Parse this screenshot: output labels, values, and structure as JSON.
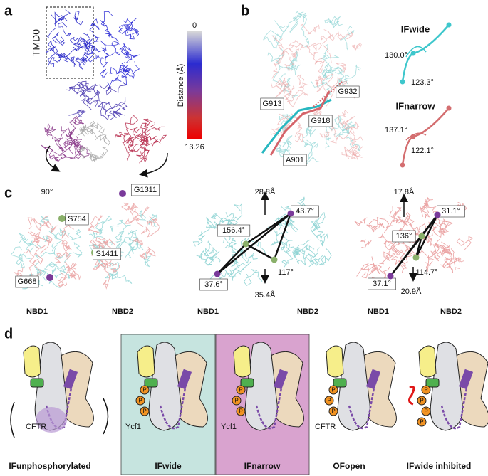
{
  "panels": {
    "a": {
      "label": "a",
      "box_label": "TMD0",
      "colorbar": {
        "title": "Distance (Å)",
        "min": "0",
        "max": "13.26"
      }
    },
    "b": {
      "label": "b",
      "residues": [
        "G913",
        "G932",
        "G918",
        "A901"
      ],
      "insets": [
        {
          "title": "IFwide",
          "angles": [
            "130.0°",
            "123.3°"
          ]
        },
        {
          "title": "IFnarrow",
          "angles": [
            "137.1°",
            "122.1°"
          ]
        }
      ]
    },
    "c": {
      "label": "c",
      "rotation": "90°",
      "left": {
        "residues": [
          "G1311",
          "S754",
          "S1411",
          "G668"
        ],
        "domains": [
          "NBD1",
          "NBD2"
        ]
      },
      "middle": {
        "angles": [
          "156.4°",
          "43.7°",
          "117°",
          "37.6°"
        ],
        "distances": [
          "28.8Å",
          "35.4Å"
        ],
        "domains": [
          "NBD1",
          "NBD2"
        ]
      },
      "right": {
        "angles": [
          "136°",
          "31.1°",
          "114.7°",
          "37.1°"
        ],
        "distances": [
          "17.8Å",
          "20.9Å"
        ],
        "domains": [
          "NBD1",
          "NBD2"
        ]
      }
    },
    "d": {
      "label": "d",
      "phospho_label": "P",
      "states": [
        {
          "name": "IFunphosphorylated",
          "protein": "CFTR"
        },
        {
          "name": "IFwide",
          "protein": "Ycf1"
        },
        {
          "name": "IFnarrow",
          "protein": "Ycf1"
        },
        {
          "name": "OFopen",
          "protein": "CFTR"
        },
        {
          "name": "IFwide inhibited"
        }
      ]
    }
  }
}
